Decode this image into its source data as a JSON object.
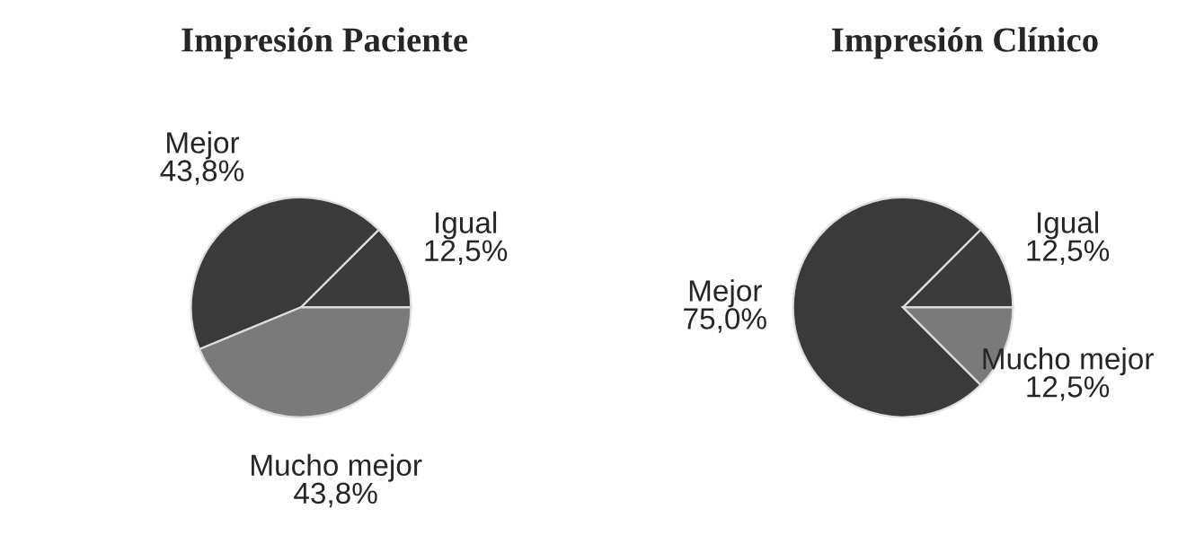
{
  "chart_data": [
    {
      "type": "pie",
      "title": "Impresión Paciente",
      "categories": [
        "Igual",
        "Mejor",
        "Mucho mejor"
      ],
      "values": [
        12.5,
        43.8,
        43.8
      ],
      "value_labels": [
        "12,5%",
        "43,8%",
        "43,8%"
      ],
      "colors": [
        "#3a3a3a",
        "#3a3a3a",
        "#7a7a7a"
      ]
    },
    {
      "type": "pie",
      "title": "Impresión Clínico",
      "categories": [
        "Igual",
        "Mejor",
        "Mucho mejor"
      ],
      "values": [
        12.5,
        75.0,
        12.5
      ],
      "value_labels": [
        "12,5%",
        "75,0%",
        "12,5%"
      ],
      "colors": [
        "#3a3a3a",
        "#3a3a3a",
        "#7a7a7a"
      ]
    }
  ]
}
